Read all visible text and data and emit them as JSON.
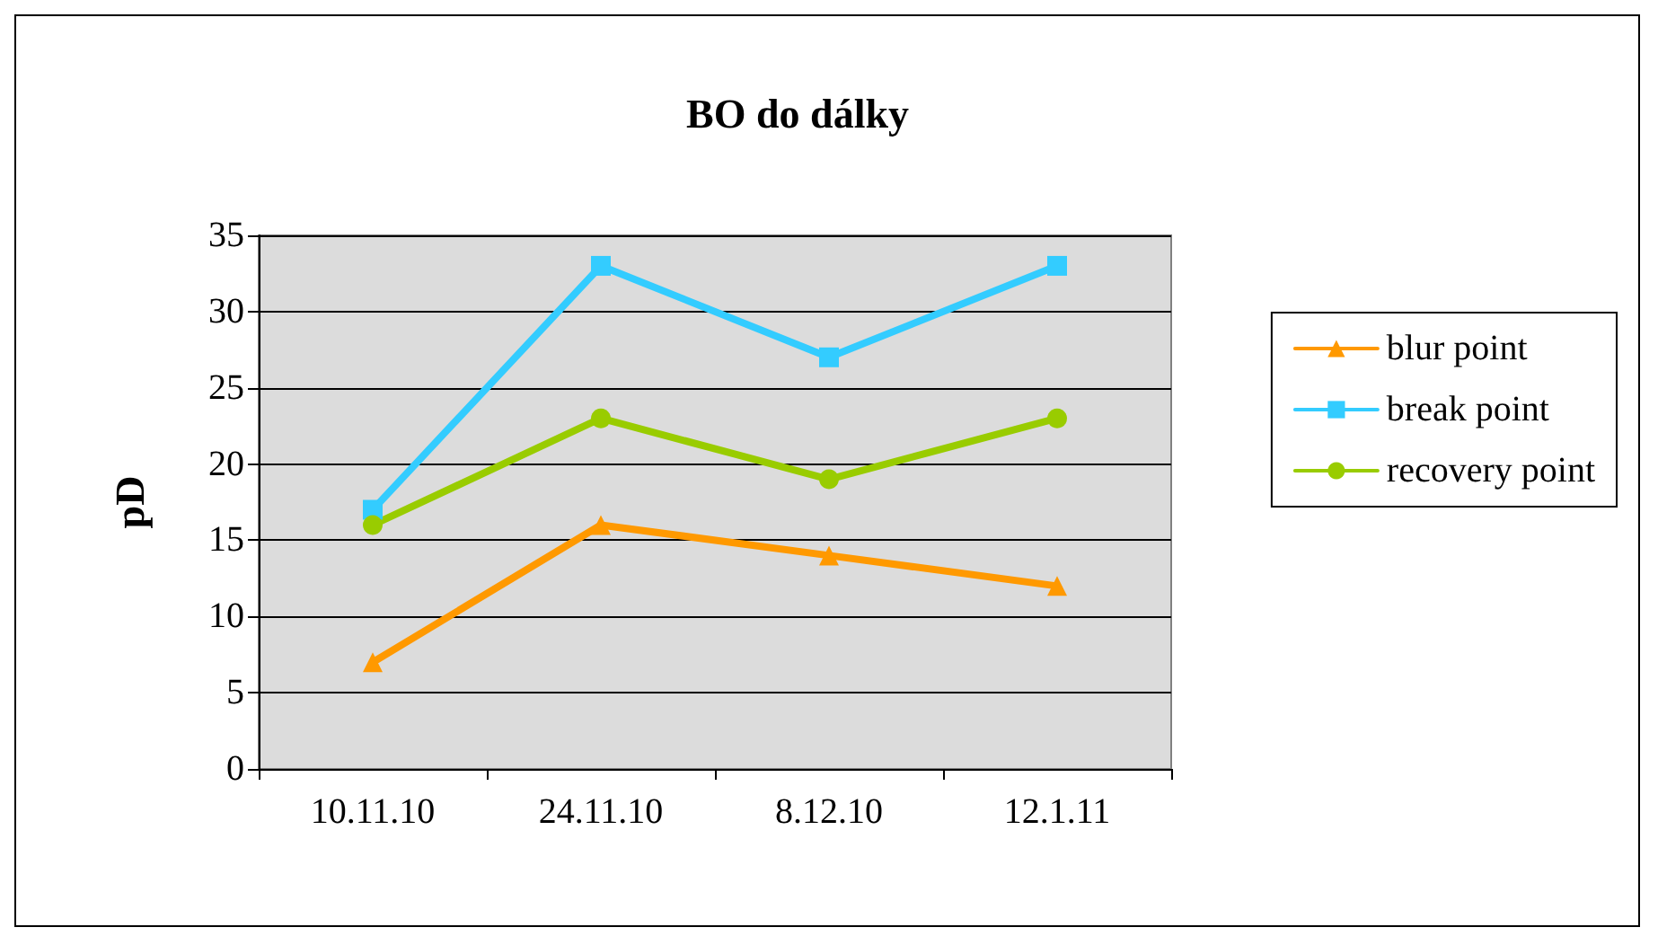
{
  "chart_data": {
    "type": "line",
    "title": "BO do dálky",
    "ylabel": "pD",
    "categories": [
      "10.11.10",
      "24.11.10",
      "8.12.10",
      "12.1.11"
    ],
    "series": [
      {
        "name": "blur point",
        "color": "#ff9900",
        "values": [
          7,
          16,
          14,
          12
        ],
        "marker": "triangle"
      },
      {
        "name": "break point",
        "color": "#33ccff",
        "values": [
          17,
          33,
          27,
          33
        ],
        "marker": "square"
      },
      {
        "name": "recovery point",
        "color": "#99cc00",
        "values": [
          16,
          23,
          19,
          23
        ],
        "marker": "circle"
      }
    ],
    "ylim": [
      0,
      35
    ],
    "yticks": [
      0,
      5,
      10,
      15,
      20,
      25,
      30,
      35
    ],
    "grid": "y",
    "legend": "right"
  }
}
